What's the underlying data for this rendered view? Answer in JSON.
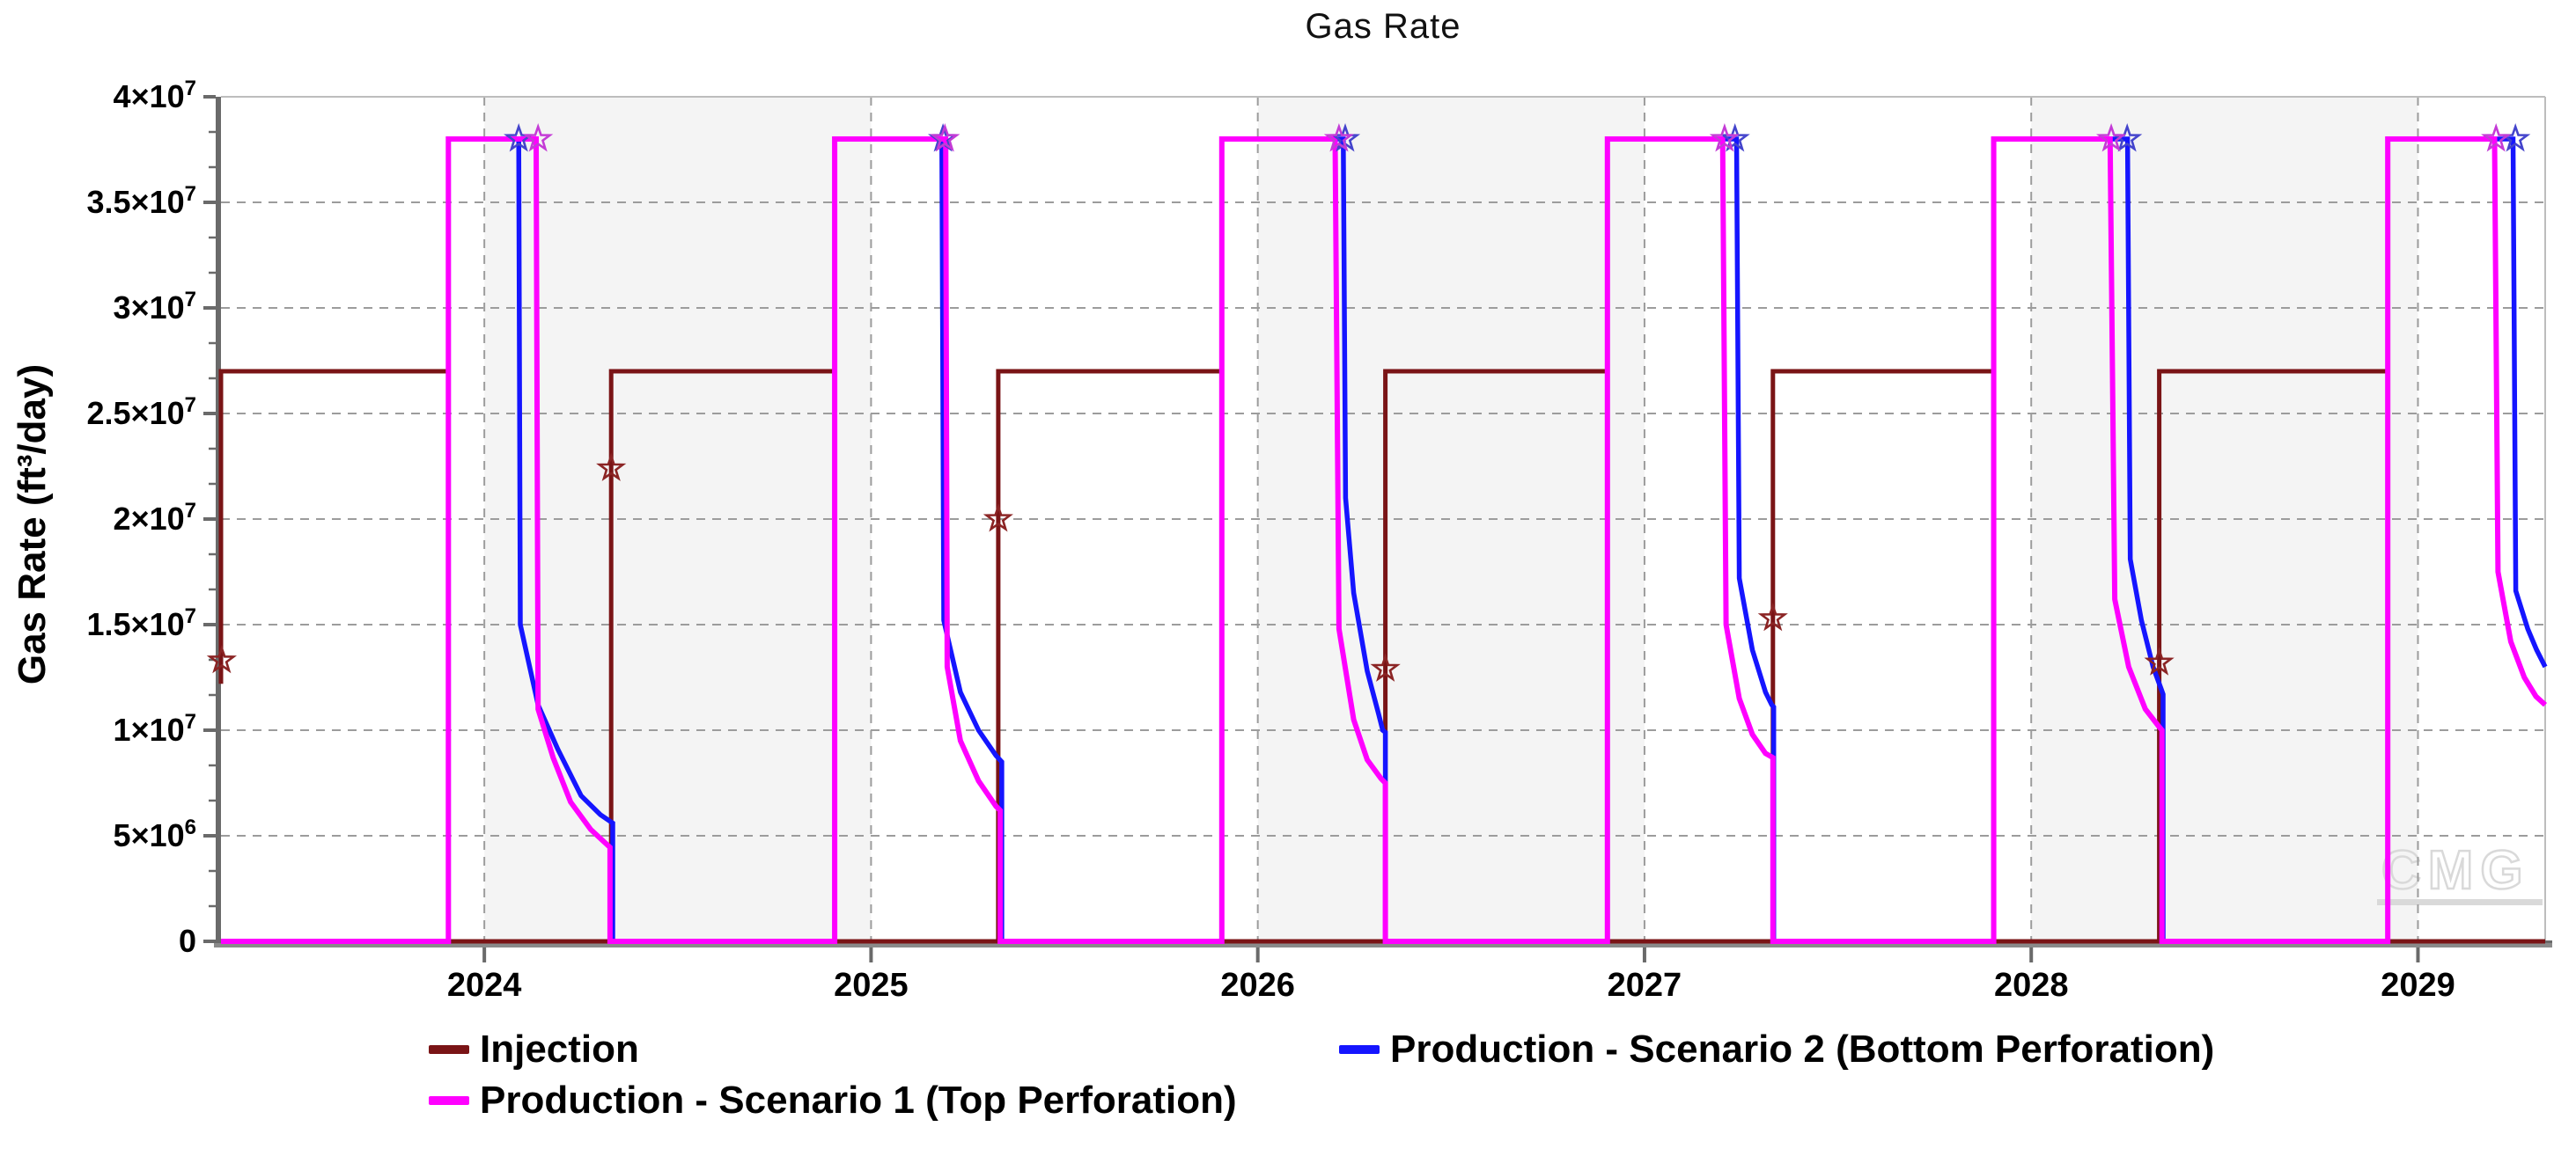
{
  "chart_data": {
    "type": "line",
    "title": "Gas Rate",
    "ylabel": "Gas Rate (ft³/day)",
    "x_range": [
      2023.319,
      2029.329
    ],
    "y_range": [
      0,
      40000000
    ],
    "x_ticks": [
      {
        "v": 2024,
        "label": "2024"
      },
      {
        "v": 2025,
        "label": "2025"
      },
      {
        "v": 2026,
        "label": "2026"
      },
      {
        "v": 2027,
        "label": "2027"
      },
      {
        "v": 2028,
        "label": "2028"
      },
      {
        "v": 2029,
        "label": "2029"
      }
    ],
    "y_ticks": [
      {
        "v": 0,
        "mant": "0",
        "exp": ""
      },
      {
        "v": 5000000,
        "mant": "5×10",
        "exp": "6"
      },
      {
        "v": 10000000,
        "mant": "1×10",
        "exp": "7"
      },
      {
        "v": 15000000,
        "mant": "1.5×10",
        "exp": "7"
      },
      {
        "v": 20000000,
        "mant": "2×10",
        "exp": "7"
      },
      {
        "v": 25000000,
        "mant": "2.5×10",
        "exp": "7"
      },
      {
        "v": 30000000,
        "mant": "3×10",
        "exp": "7"
      },
      {
        "v": 35000000,
        "mant": "3.5×10",
        "exp": "7"
      },
      {
        "v": 40000000,
        "mant": "4×10",
        "exp": "7"
      }
    ],
    "y_minor_divisions": 3,
    "shaded_year_bands": [
      [
        2024,
        2025
      ],
      [
        2026,
        2027
      ],
      [
        2028,
        2029
      ]
    ],
    "band_color": "#f4f4f4",
    "grid_color": "#9c9c9c",
    "frame_color": "#bdbdbd",
    "axis_color": "#6a6a6a",
    "axis_bar_color": "#8a8a8a",
    "watermark": "CMG",
    "watermark_color": "#d9d9d9",
    "series": [
      {
        "name": "Injection",
        "color": "#7a1416",
        "width": 5,
        "points": [
          [
            2023.319,
            12200000
          ],
          [
            2023.319,
            27000000
          ],
          [
            2023.907,
            27000000
          ],
          [
            2023.907,
            0
          ],
          [
            2024.328,
            0
          ],
          [
            2024.328,
            27000000
          ],
          [
            2024.906,
            27000000
          ],
          [
            2024.906,
            0
          ],
          [
            2025.329,
            0
          ],
          [
            2025.329,
            27000000
          ],
          [
            2025.907,
            27000000
          ],
          [
            2025.907,
            0
          ],
          [
            2026.33,
            0
          ],
          [
            2026.33,
            27000000
          ],
          [
            2026.904,
            27000000
          ],
          [
            2026.904,
            0
          ],
          [
            2027.332,
            0
          ],
          [
            2027.332,
            27000000
          ],
          [
            2027.903,
            27000000
          ],
          [
            2027.903,
            0
          ],
          [
            2028.331,
            0
          ],
          [
            2028.331,
            27000000
          ],
          [
            2028.922,
            27000000
          ],
          [
            2028.922,
            0
          ],
          [
            2029.329,
            0
          ]
        ]
      },
      {
        "name": "Production - Scenario 2 (Bottom Perforation)",
        "color": "#1515ff",
        "width": 5.5,
        "points": [
          [
            2023.319,
            0
          ],
          [
            2023.907,
            0
          ],
          [
            2023.907,
            38000000
          ],
          [
            2024.089,
            38000000
          ],
          [
            2024.093,
            15000000
          ],
          [
            2024.105,
            14000000
          ],
          [
            2024.139,
            11200000
          ],
          [
            2024.19,
            9100000
          ],
          [
            2024.25,
            6900000
          ],
          [
            2024.3,
            6000000
          ],
          [
            2024.332,
            5600000
          ],
          [
            2024.332,
            0
          ],
          [
            2024.906,
            0
          ],
          [
            2024.906,
            38000000
          ],
          [
            2025.183,
            38000000
          ],
          [
            2025.188,
            15200000
          ],
          [
            2025.231,
            11800000
          ],
          [
            2025.278,
            10000000
          ],
          [
            2025.323,
            8800000
          ],
          [
            2025.338,
            8500000
          ],
          [
            2025.338,
            0
          ],
          [
            2025.907,
            0
          ],
          [
            2025.907,
            38000000
          ],
          [
            2026.221,
            38000000
          ],
          [
            2026.227,
            21000000
          ],
          [
            2026.248,
            16500000
          ],
          [
            2026.283,
            12800000
          ],
          [
            2026.312,
            10800000
          ],
          [
            2026.323,
            10000000
          ],
          [
            2026.33,
            9900000
          ],
          [
            2026.33,
            0
          ],
          [
            2026.904,
            0
          ],
          [
            2026.904,
            38000000
          ],
          [
            2027.238,
            38000000
          ],
          [
            2027.245,
            17200000
          ],
          [
            2027.279,
            13800000
          ],
          [
            2027.313,
            11800000
          ],
          [
            2027.329,
            11200000
          ],
          [
            2027.334,
            11100000
          ],
          [
            2027.334,
            0
          ],
          [
            2027.903,
            0
          ],
          [
            2027.903,
            38000000
          ],
          [
            2028.249,
            38000000
          ],
          [
            2028.256,
            18100000
          ],
          [
            2028.285,
            15200000
          ],
          [
            2028.315,
            13000000
          ],
          [
            2028.335,
            12000000
          ],
          [
            2028.341,
            11700000
          ],
          [
            2028.341,
            0
          ],
          [
            2028.922,
            0
          ],
          [
            2028.922,
            38000000
          ],
          [
            2029.246,
            38000000
          ],
          [
            2029.253,
            16600000
          ],
          [
            2029.284,
            14800000
          ],
          [
            2029.307,
            13800000
          ],
          [
            2029.329,
            13000000
          ]
        ]
      },
      {
        "name": "Production - Scenario 1 (Top Perforation)",
        "color": "#ff00ff",
        "width": 6,
        "points": [
          [
            2023.319,
            0
          ],
          [
            2023.907,
            0
          ],
          [
            2023.907,
            38000000
          ],
          [
            2024.134,
            38000000
          ],
          [
            2024.139,
            11000000
          ],
          [
            2024.178,
            8700000
          ],
          [
            2024.223,
            6600000
          ],
          [
            2024.275,
            5300000
          ],
          [
            2024.325,
            4450000
          ],
          [
            2024.325,
            0
          ],
          [
            2024.906,
            0
          ],
          [
            2024.906,
            38000000
          ],
          [
            2025.193,
            38000000
          ],
          [
            2025.197,
            13000000
          ],
          [
            2025.231,
            9500000
          ],
          [
            2025.278,
            7600000
          ],
          [
            2025.323,
            6400000
          ],
          [
            2025.334,
            6200000
          ],
          [
            2025.334,
            0
          ],
          [
            2025.907,
            0
          ],
          [
            2025.907,
            38000000
          ],
          [
            2026.2,
            38000000
          ],
          [
            2026.21,
            14800000
          ],
          [
            2026.248,
            10500000
          ],
          [
            2026.283,
            8600000
          ],
          [
            2026.319,
            7700000
          ],
          [
            2026.33,
            7500000
          ],
          [
            2026.33,
            0
          ],
          [
            2026.904,
            0
          ],
          [
            2026.904,
            38000000
          ],
          [
            2027.202,
            38000000
          ],
          [
            2027.211,
            15000000
          ],
          [
            2027.245,
            11500000
          ],
          [
            2027.279,
            9800000
          ],
          [
            2027.313,
            8900000
          ],
          [
            2027.332,
            8700000
          ],
          [
            2027.332,
            0
          ],
          [
            2027.903,
            0
          ],
          [
            2027.903,
            38000000
          ],
          [
            2028.204,
            38000000
          ],
          [
            2028.216,
            16200000
          ],
          [
            2028.252,
            13000000
          ],
          [
            2028.295,
            11000000
          ],
          [
            2028.329,
            10200000
          ],
          [
            2028.338,
            10000000
          ],
          [
            2028.338,
            0
          ],
          [
            2028.922,
            0
          ],
          [
            2028.922,
            38000000
          ],
          [
            2029.198,
            38000000
          ],
          [
            2029.207,
            17500000
          ],
          [
            2029.24,
            14200000
          ],
          [
            2029.275,
            12500000
          ],
          [
            2029.305,
            11600000
          ],
          [
            2029.329,
            11200000
          ]
        ]
      }
    ],
    "markers": [
      {
        "series": "Injection",
        "color": "#8b2424",
        "points": [
          [
            2023.321,
            13300000
          ],
          [
            2024.328,
            22400000
          ],
          [
            2025.329,
            20000000
          ],
          [
            2026.33,
            12900000
          ],
          [
            2027.332,
            15300000
          ],
          [
            2028.331,
            13200000
          ]
        ]
      },
      {
        "series": "Production - Scenario 2 (Bottom Perforation)",
        "color": "#4444cc",
        "points": [
          [
            2024.089,
            38000000
          ],
          [
            2025.186,
            38000000
          ],
          [
            2026.226,
            38000000
          ],
          [
            2027.234,
            38000000
          ],
          [
            2028.248,
            38000000
          ],
          [
            2029.252,
            38000000
          ]
        ]
      },
      {
        "series": "Production - Scenario 1 (Top Perforation)",
        "color": "#c43bd6",
        "points": [
          [
            2024.139,
            38000000
          ],
          [
            2025.191,
            38000000
          ],
          [
            2026.21,
            38000000
          ],
          [
            2027.207,
            38000000
          ],
          [
            2028.207,
            38000000
          ],
          [
            2029.202,
            38000000
          ]
        ]
      }
    ]
  },
  "legend": {
    "items": [
      {
        "label": "Injection",
        "color": "#7a1416"
      },
      {
        "label": "Production - Scenario 1 (Top Perforation)",
        "color": "#ff00ff"
      },
      {
        "label": "Production - Scenario 2 (Bottom Perforation)",
        "color": "#1515ff"
      }
    ]
  }
}
